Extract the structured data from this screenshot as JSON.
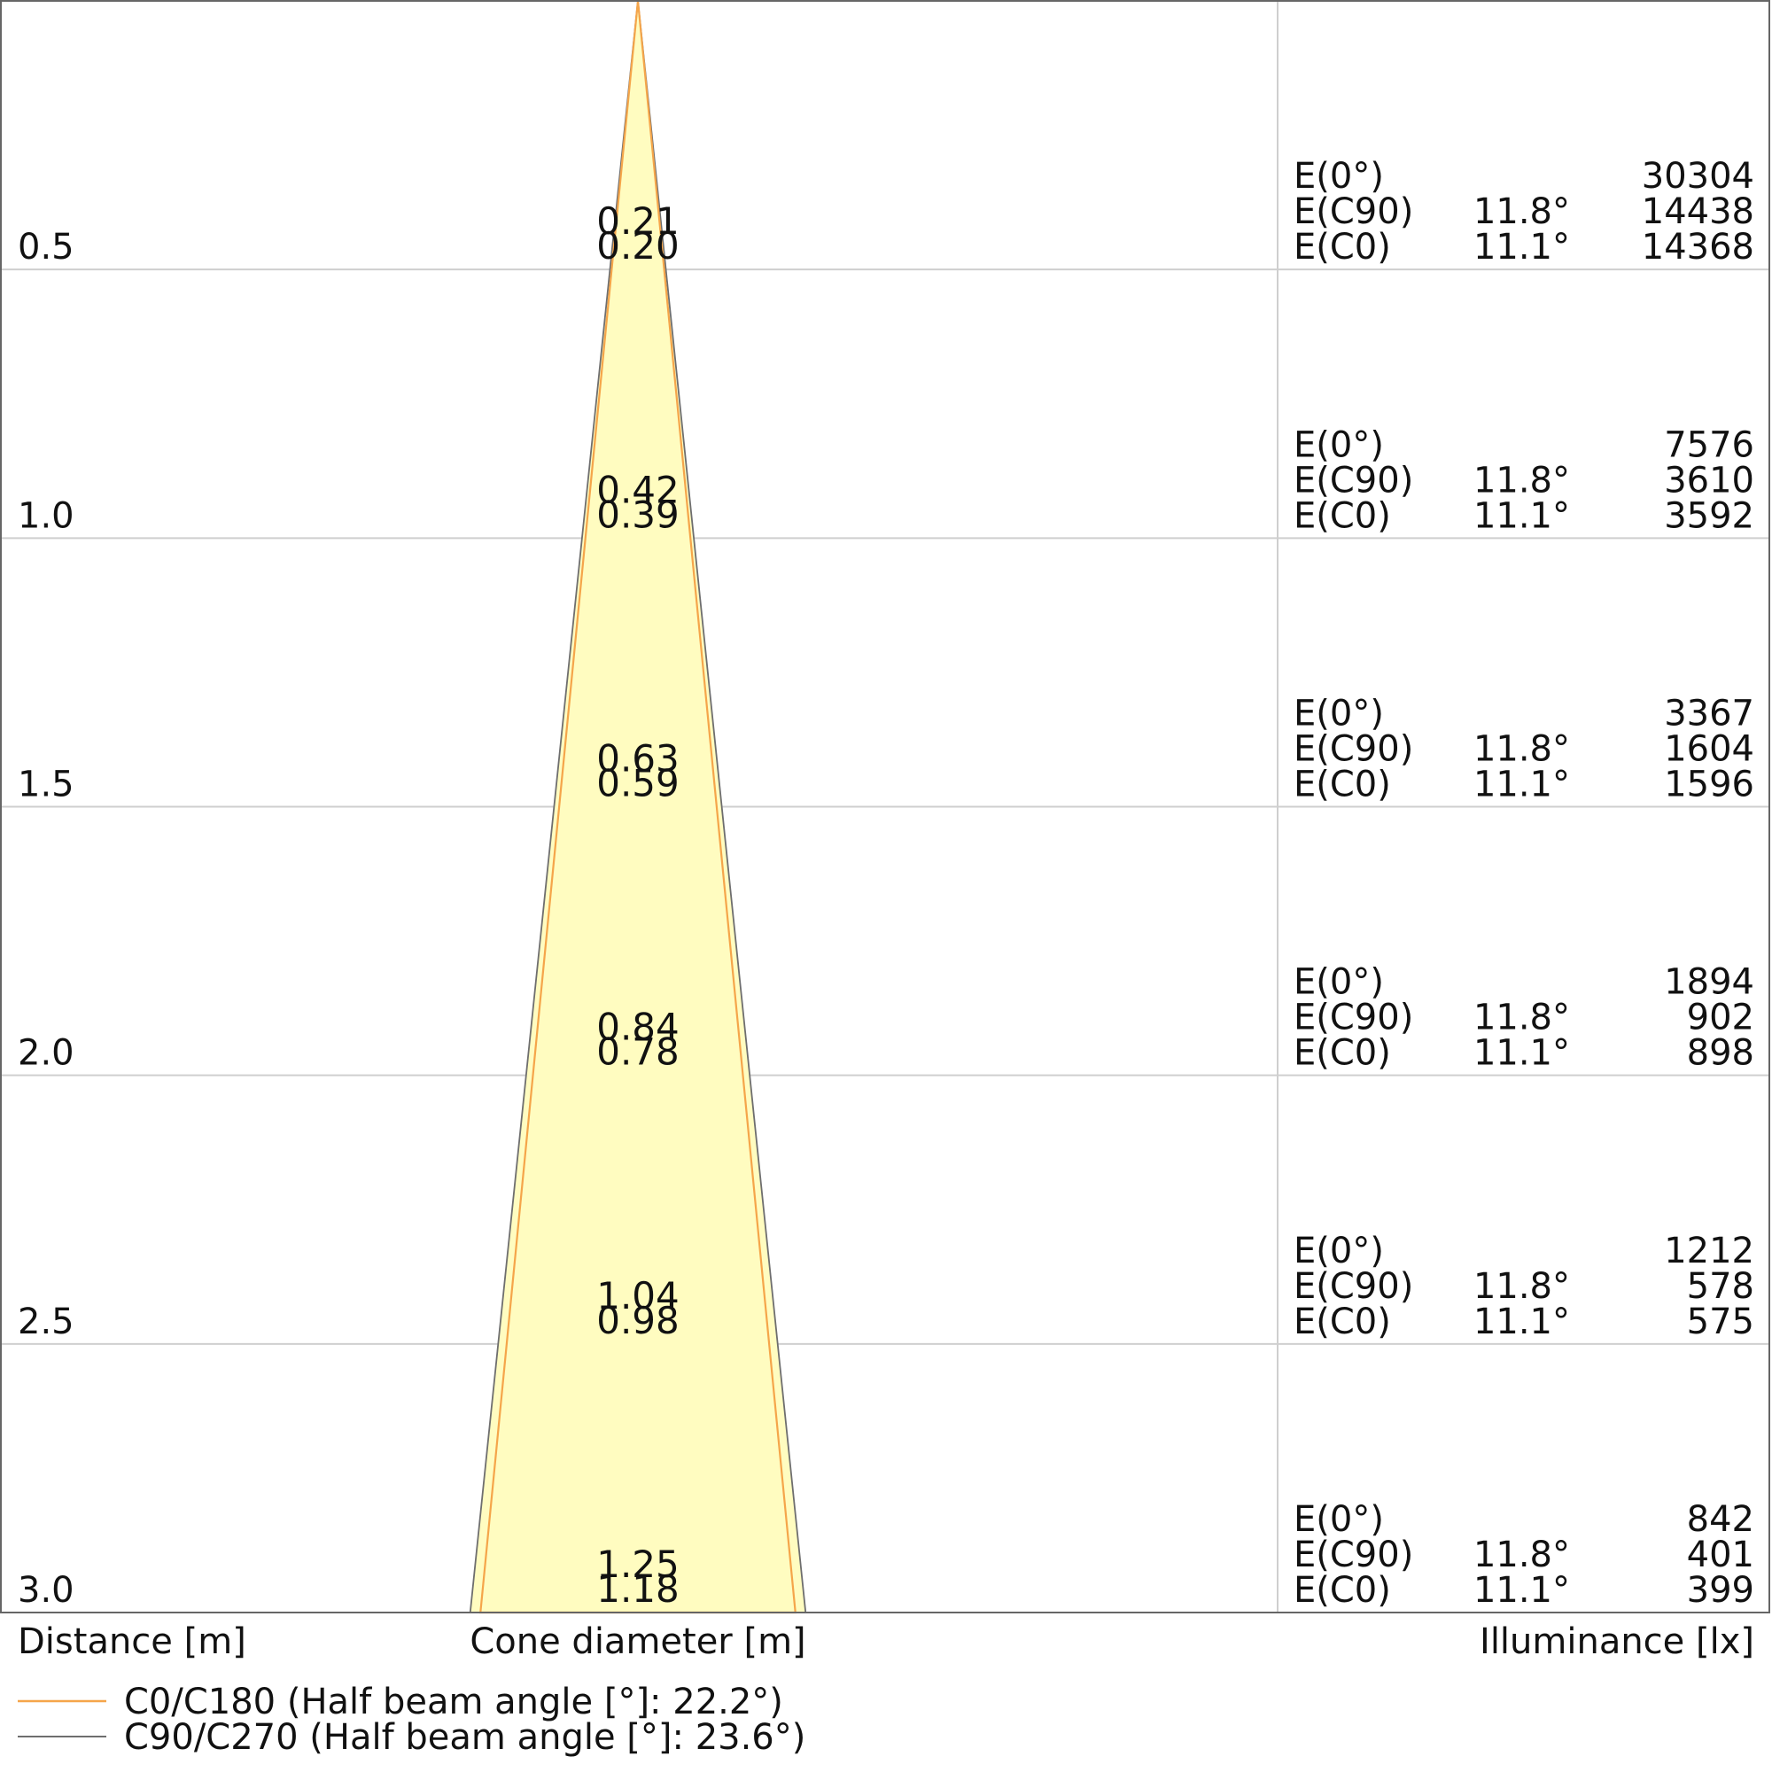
{
  "chart_data": {
    "type": "cone-diagram",
    "xlabel": "Cone diameter [m]",
    "ylabel": "Distance [m]",
    "rlabel": "Illuminance [lx]",
    "distance_range": [
      0,
      3.0
    ],
    "grid": true,
    "colors": {
      "c0": "#f5a54a",
      "c90": "#6e6e6e",
      "fill": "#fffcc0",
      "grid": "#cfcfcf",
      "frame": "#666666"
    },
    "series": [
      {
        "key": "c90",
        "name": "C90/C270 (Half beam angle [°]: 23.6°)",
        "half_beam_angle": 23.6,
        "angle_label": "11.8°",
        "row_label": "E(C90)"
      },
      {
        "key": "c0",
        "name": "C0/C180 (Half beam angle [°]: 22.2°)",
        "half_beam_angle": 22.2,
        "angle_label": "11.1°",
        "row_label": "E(C0)"
      }
    ],
    "center_label": "E(0°)",
    "rows": [
      {
        "distance": 0.5,
        "distance_label": "0.5",
        "d_c90": "0.21",
        "d_c0": "0.20",
        "e0": "30304",
        "e_c90": "14438",
        "e_c0": "14368"
      },
      {
        "distance": 1.0,
        "distance_label": "1.0",
        "d_c90": "0.42",
        "d_c0": "0.39",
        "e0": "7576",
        "e_c90": "3610",
        "e_c0": "3592"
      },
      {
        "distance": 1.5,
        "distance_label": "1.5",
        "d_c90": "0.63",
        "d_c0": "0.59",
        "e0": "3367",
        "e_c90": "1604",
        "e_c0": "1596"
      },
      {
        "distance": 2.0,
        "distance_label": "2.0",
        "d_c90": "0.84",
        "d_c0": "0.78",
        "e0": "1894",
        "e_c90": "902",
        "e_c0": "898"
      },
      {
        "distance": 2.5,
        "distance_label": "2.5",
        "d_c90": "1.04",
        "d_c0": "0.98",
        "e0": "1212",
        "e_c90": "578",
        "e_c0": "575"
      },
      {
        "distance": 3.0,
        "distance_label": "3.0",
        "d_c90": "1.25",
        "d_c0": "1.18",
        "e0": "842",
        "e_c90": "401",
        "e_c0": "399"
      }
    ]
  }
}
